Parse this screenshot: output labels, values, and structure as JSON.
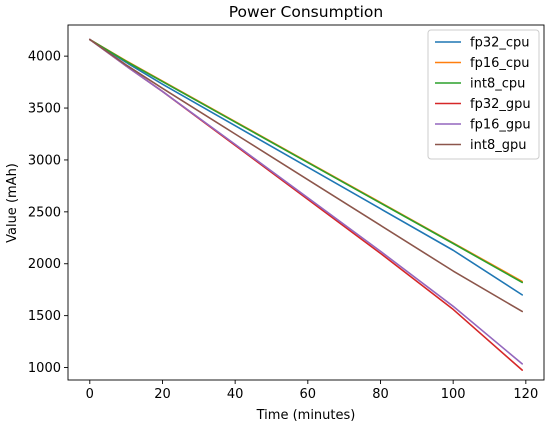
{
  "chart_data": {
    "type": "line",
    "title": "Power Consumption",
    "xlabel": "Time (minutes)",
    "ylabel": "Value (mAh)",
    "xlim": [
      -6,
      125
    ],
    "ylim": [
      880,
      4300
    ],
    "xticks": [
      0,
      20,
      40,
      60,
      80,
      100,
      120
    ],
    "yticks": [
      1000,
      1500,
      2000,
      2500,
      3000,
      3500,
      4000
    ],
    "grid": false,
    "legend_position": "top-right",
    "series": [
      {
        "name": "fp32_cpu",
        "color": "#1f77b4",
        "x": [
          0,
          10,
          20,
          40,
          60,
          80,
          100,
          119
        ],
        "y": [
          4160,
          3940,
          3730,
          3330,
          2930,
          2530,
          2130,
          1700
        ]
      },
      {
        "name": "fp16_cpu",
        "color": "#ff7f0e",
        "x": [
          0,
          10,
          20,
          40,
          60,
          80,
          100,
          119
        ],
        "y": [
          4160,
          3955,
          3760,
          3370,
          2980,
          2590,
          2200,
          1830
        ]
      },
      {
        "name": "int8_cpu",
        "color": "#2ca02c",
        "x": [
          0,
          10,
          20,
          40,
          60,
          80,
          100,
          119
        ],
        "y": [
          4160,
          3950,
          3755,
          3365,
          2975,
          2585,
          2195,
          1820
        ]
      },
      {
        "name": "fp32_gpu",
        "color": "#d62728",
        "x": [
          0,
          10,
          20,
          40,
          60,
          80,
          100,
          119
        ],
        "y": [
          4160,
          3905,
          3660,
          3140,
          2620,
          2100,
          1560,
          975
        ]
      },
      {
        "name": "fp16_gpu",
        "color": "#9467bd",
        "x": [
          0,
          10,
          20,
          40,
          60,
          80,
          100,
          119
        ],
        "y": [
          4160,
          3905,
          3660,
          3150,
          2635,
          2120,
          1590,
          1035
        ]
      },
      {
        "name": "int8_gpu",
        "color": "#8c564b",
        "x": [
          0,
          10,
          20,
          40,
          60,
          80,
          100,
          119
        ],
        "y": [
          4160,
          3915,
          3690,
          3250,
          2810,
          2370,
          1930,
          1540
        ]
      }
    ]
  }
}
